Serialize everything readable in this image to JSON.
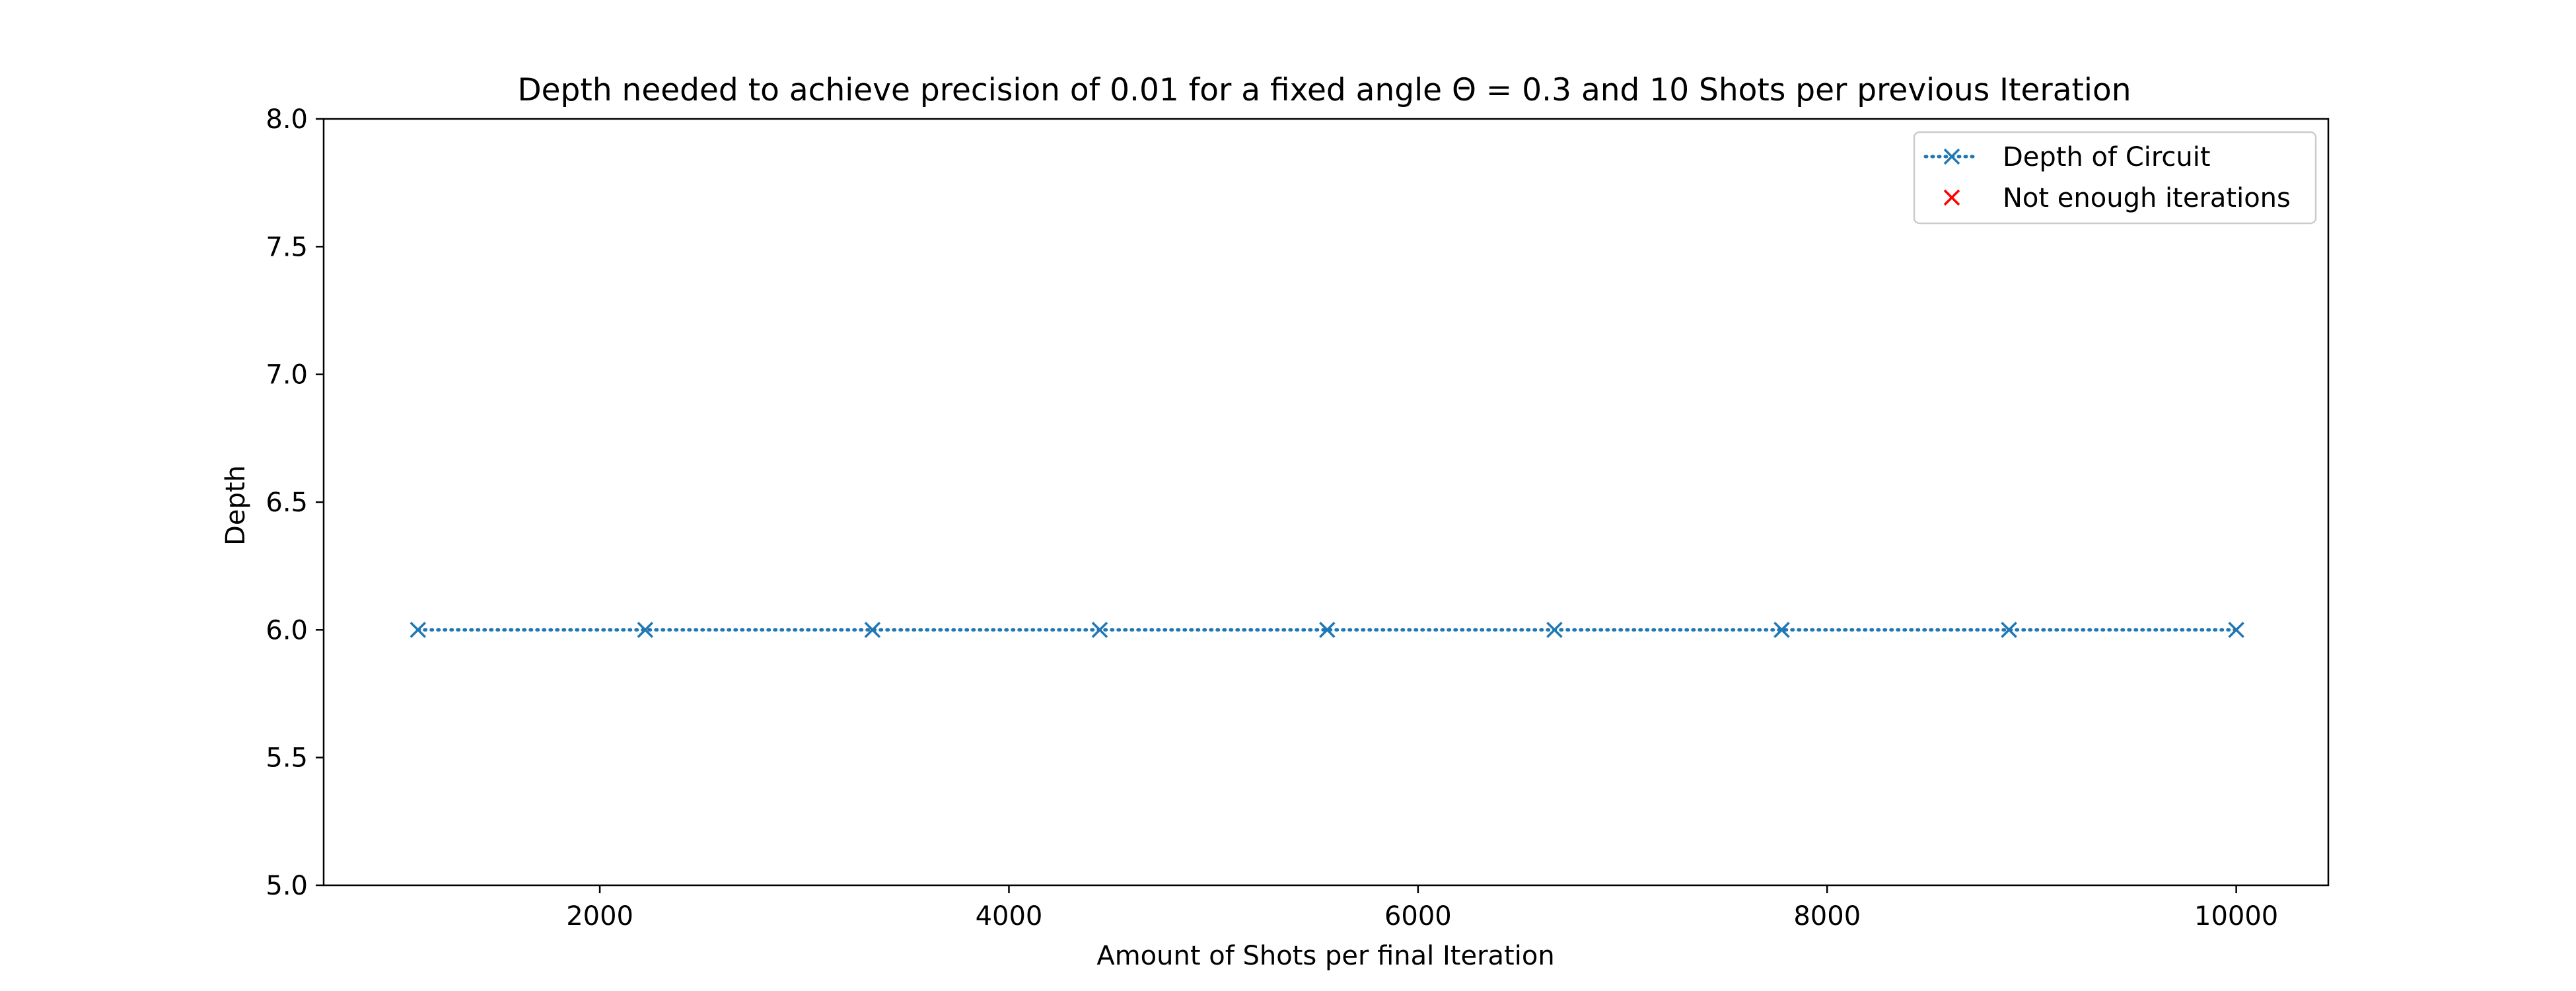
{
  "chart_data": {
    "type": "line",
    "title": "Depth needed to achieve precision of 0.01 for a fixed angle Θ = 0.3 and 10 Shots per previous Iteration",
    "xlabel": "Amount of Shots per final Iteration",
    "ylabel": "Depth",
    "xlim": [
      650,
      10450
    ],
    "ylim": [
      5.0,
      8.0
    ],
    "xticks": [
      2000,
      4000,
      6000,
      8000,
      10000
    ],
    "xtick_labels": [
      "2000",
      "4000",
      "6000",
      "8000",
      "10000"
    ],
    "yticks": [
      5.0,
      5.5,
      6.0,
      6.5,
      7.0,
      7.5,
      8.0
    ],
    "ytick_labels": [
      "5.0",
      "5.5",
      "6.0",
      "6.5",
      "7.0",
      "7.5",
      "8.0"
    ],
    "grid": false,
    "legend_position": "top-right",
    "series": [
      {
        "name": "Depth of Circuit",
        "color": "#1f77b4",
        "linestyle": "dotted",
        "marker": "x",
        "x": [
          1111,
          2222,
          3333,
          4444,
          5556,
          6667,
          7778,
          8889,
          10000
        ],
        "y": [
          6,
          6,
          6,
          6,
          6,
          6,
          6,
          6,
          6
        ]
      },
      {
        "name": "Not enough iterations",
        "color": "#ff0000",
        "linestyle": "none",
        "marker": "x",
        "x": [],
        "y": []
      }
    ]
  }
}
